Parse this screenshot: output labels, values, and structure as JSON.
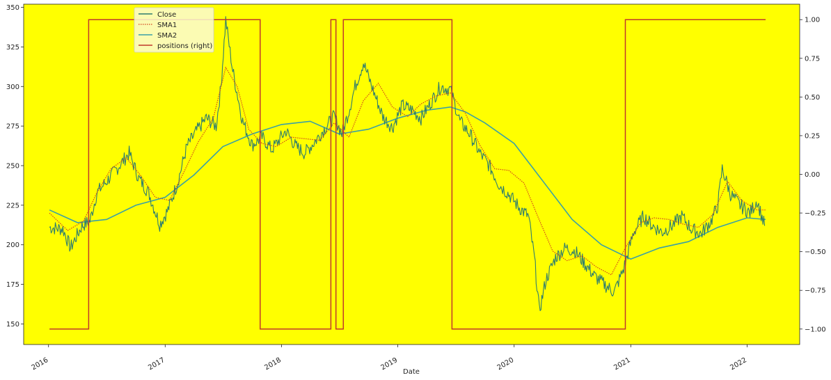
{
  "chart_data": {
    "type": "line",
    "title": "",
    "xlabel": "Date",
    "ylabel": "",
    "ylim": [
      137,
      352
    ],
    "y_right_lim": [
      -1.1,
      1.1
    ],
    "xlim": [
      "2015-10-15",
      "2022-06-15"
    ],
    "grid": false,
    "background": "#ffff00",
    "legend_position": "upper-left",
    "x_ticks": [
      {
        "date": "2016-01-01",
        "label": "2016"
      },
      {
        "date": "2017-01-01",
        "label": "2017"
      },
      {
        "date": "2018-01-01",
        "label": "2018"
      },
      {
        "date": "2019-01-01",
        "label": "2019"
      },
      {
        "date": "2020-01-01",
        "label": "2020"
      },
      {
        "date": "2021-01-01",
        "label": "2021"
      },
      {
        "date": "2022-01-01",
        "label": "2022"
      }
    ],
    "y_ticks": [
      150,
      175,
      200,
      225,
      250,
      275,
      300,
      325,
      350
    ],
    "y_right_ticks": [
      {
        "value": -1.0,
        "label": "−1.00"
      },
      {
        "value": -0.75,
        "label": "−0.75"
      },
      {
        "value": -0.5,
        "label": "−0.50"
      },
      {
        "value": -0.25,
        "label": "−0.25"
      },
      {
        "value": 0.0,
        "label": "0.00"
      },
      {
        "value": 0.25,
        "label": "0.25"
      },
      {
        "value": 0.5,
        "label": "0.50"
      },
      {
        "value": 0.75,
        "label": "0.75"
      },
      {
        "value": 1.0,
        "label": "1.00"
      }
    ],
    "series": [
      {
        "name": "Close",
        "axis": "left",
        "color": "#2e7d6e",
        "style": "solid",
        "x": [
          "2016-01-04",
          "2016-02-15",
          "2016-03-10",
          "2016-04-15",
          "2016-05-10",
          "2016-06-01",
          "2016-07-01",
          "2016-08-10",
          "2016-09-10",
          "2016-10-10",
          "2016-11-10",
          "2016-12-15",
          "2017-01-10",
          "2017-02-10",
          "2017-03-10",
          "2017-04-10",
          "2017-05-10",
          "2017-06-10",
          "2017-06-25",
          "2017-07-10",
          "2017-08-01",
          "2017-09-01",
          "2017-10-01",
          "2017-11-01",
          "2017-12-01",
          "2018-01-15",
          "2018-02-15",
          "2018-03-15",
          "2018-04-15",
          "2018-05-15",
          "2018-06-15",
          "2018-07-10",
          "2018-08-01",
          "2018-08-20",
          "2018-09-15",
          "2018-10-15",
          "2018-11-15",
          "2018-12-15",
          "2019-01-15",
          "2019-02-15",
          "2019-03-15",
          "2019-04-15",
          "2019-05-15",
          "2019-06-15",
          "2019-07-15",
          "2019-08-15",
          "2019-09-15",
          "2019-10-15",
          "2019-11-15",
          "2019-12-15",
          "2020-01-15",
          "2020-02-15",
          "2020-03-05",
          "2020-03-20",
          "2020-04-10",
          "2020-05-10",
          "2020-06-10",
          "2020-07-10",
          "2020-08-10",
          "2020-09-10",
          "2020-10-10",
          "2020-11-10",
          "2020-12-10",
          "2021-01-10",
          "2021-02-10",
          "2021-03-10",
          "2021-04-10",
          "2021-05-10",
          "2021-06-10",
          "2021-07-10",
          "2021-08-10",
          "2021-09-10",
          "2021-10-01",
          "2021-10-15",
          "2021-11-10",
          "2021-12-10",
          "2022-01-10",
          "2022-02-01",
          "2022-02-25"
        ],
        "values": [
          211,
          210,
          198,
          212,
          215,
          233,
          240,
          250,
          258,
          242,
          233,
          213,
          222,
          240,
          262,
          272,
          280,
          275,
          300,
          342,
          310,
          278,
          263,
          268,
          260,
          272,
          262,
          258,
          265,
          273,
          281,
          270,
          285,
          300,
          315,
          298,
          281,
          274,
          288,
          285,
          280,
          290,
          300,
          298,
          278,
          270,
          258,
          250,
          238,
          232,
          224,
          218,
          191,
          158,
          178,
          192,
          198,
          196,
          188,
          180,
          175,
          170,
          185,
          208,
          218,
          212,
          208,
          212,
          218,
          210,
          207,
          215,
          225,
          248,
          232,
          225,
          220,
          228,
          212
        ],
        "markers": [
          210,
          275,
          301,
          276,
          255,
          216,
          229
        ]
      },
      {
        "name": "SMA1",
        "axis": "left",
        "color": "#d0441c",
        "style": "dotted",
        "x": [
          "2016-01-04",
          "2016-03-01",
          "2016-04-20",
          "2016-06-01",
          "2016-07-15",
          "2016-09-01",
          "2016-10-15",
          "2016-12-01",
          "2017-01-15",
          "2017-03-01",
          "2017-04-15",
          "2017-06-01",
          "2017-07-10",
          "2017-08-15",
          "2017-09-20",
          "2017-11-01",
          "2017-12-15",
          "2018-02-01",
          "2018-03-15",
          "2018-05-01",
          "2018-06-15",
          "2018-08-01",
          "2018-09-15",
          "2018-11-01",
          "2018-12-15",
          "2019-02-01",
          "2019-03-15",
          "2019-05-01",
          "2019-06-15",
          "2019-08-01",
          "2019-09-15",
          "2019-11-01",
          "2019-12-15",
          "2020-02-01",
          "2020-03-15",
          "2020-05-01",
          "2020-06-15",
          "2020-08-01",
          "2020-09-15",
          "2020-11-01",
          "2020-12-15",
          "2021-02-01",
          "2021-03-15",
          "2021-05-01",
          "2021-06-15",
          "2021-08-01",
          "2021-09-15",
          "2021-11-01",
          "2021-12-15",
          "2022-02-01",
          "2022-02-28"
        ],
        "values": [
          220,
          209,
          215,
          233,
          248,
          255,
          244,
          230,
          228,
          246,
          265,
          280,
          312,
          300,
          273,
          264,
          262,
          268,
          267,
          266,
          277,
          268,
          291,
          302,
          287,
          281,
          289,
          294,
          296,
          283,
          263,
          248,
          247,
          239,
          218,
          196,
          190,
          193,
          186,
          181,
          198,
          214,
          217,
          216,
          213,
          211,
          219,
          240,
          228,
          222,
          222
        ]
      },
      {
        "name": "SMA2",
        "axis": "left",
        "color": "#3aa0a6",
        "style": "solid",
        "x": [
          "2016-01-04",
          "2016-04-01",
          "2016-07-01",
          "2016-10-01",
          "2017-01-01",
          "2017-04-01",
          "2017-07-01",
          "2017-10-01",
          "2018-01-01",
          "2018-04-01",
          "2018-07-01",
          "2018-10-01",
          "2019-01-01",
          "2019-04-01",
          "2019-06-15",
          "2019-08-01",
          "2019-10-01",
          "2020-01-01",
          "2020-04-01",
          "2020-07-01",
          "2020-10-01",
          "2021-01-01",
          "2021-04-01",
          "2021-07-01",
          "2021-10-01",
          "2022-01-01",
          "2022-02-28"
        ],
        "values": [
          222,
          214,
          216,
          225,
          230,
          244,
          262,
          270,
          276,
          278,
          270,
          273,
          280,
          285,
          287,
          284,
          277,
          264,
          240,
          216,
          200,
          191,
          198,
          202,
          211,
          217,
          216
        ]
      },
      {
        "name": "positions (right)",
        "axis": "right",
        "color": "#c0392b",
        "style": "step",
        "x": [
          "2016-01-04",
          "2016-05-06",
          "2017-10-26",
          "2018-06-05",
          "2018-06-21",
          "2018-07-14",
          "2019-06-20",
          "2020-12-15",
          "2022-02-28"
        ],
        "values": [
          -1,
          1,
          -1,
          1,
          -1,
          1,
          -1,
          1,
          1
        ]
      }
    ]
  }
}
